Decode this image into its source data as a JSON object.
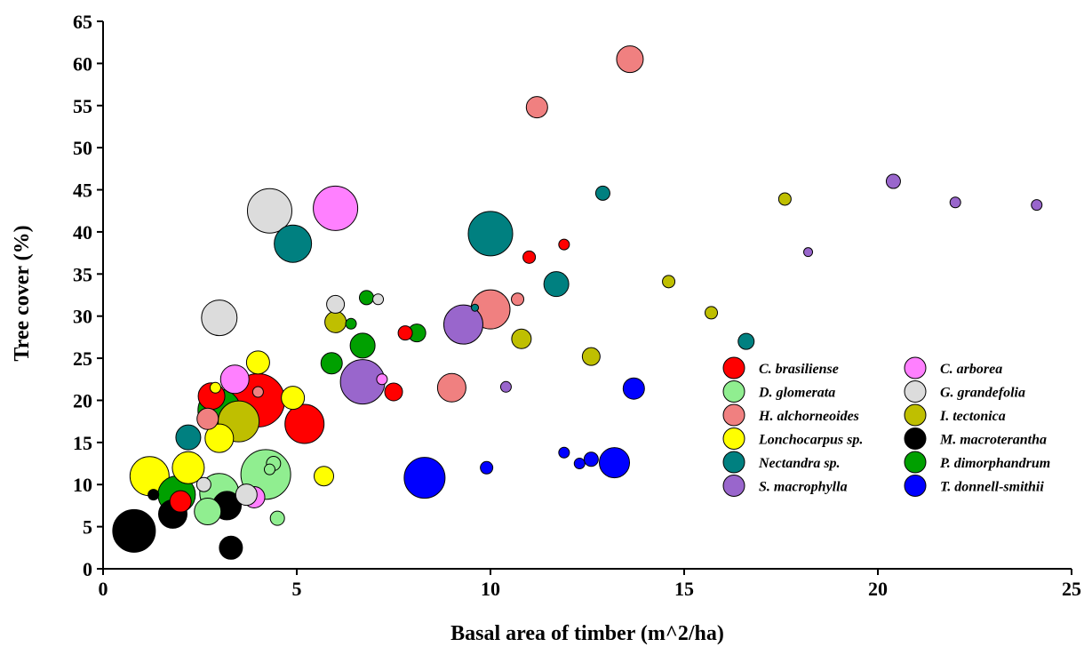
{
  "chart_data": {
    "type": "scatter",
    "subtype": "bubble",
    "title": "",
    "xlabel": "Basal area of timber (m^2/ha)",
    "ylabel": "Tree cover (%)",
    "xlim": [
      0,
      25
    ],
    "ylim": [
      0,
      65
    ],
    "xticks": [
      0,
      5,
      10,
      15,
      20,
      25
    ],
    "yticks": [
      0,
      5,
      10,
      15,
      20,
      25,
      30,
      35,
      40,
      45,
      50,
      55,
      60,
      65
    ],
    "grid": false,
    "legend_position": "bottom-right",
    "series": [
      {
        "name": "C. brasiliense",
        "color": "#ff0000",
        "points": [
          [
            4.0,
            20.0,
            3
          ],
          [
            5.2,
            17.2,
            2.2
          ],
          [
            2.8,
            20.5,
            1.5
          ],
          [
            7.5,
            21.0,
            1.0
          ],
          [
            7.8,
            28.0,
            0.8
          ],
          [
            11.0,
            37.0,
            0.7
          ],
          [
            11.9,
            38.5,
            0.6
          ],
          [
            2.0,
            8.0,
            1.2
          ]
        ]
      },
      {
        "name": "D. glomerata",
        "color": "#90ee90",
        "points": [
          [
            4.2,
            11.2,
            2.8
          ],
          [
            3.0,
            9.0,
            2.2
          ],
          [
            2.7,
            6.8,
            1.5
          ],
          [
            4.4,
            12.5,
            0.8
          ],
          [
            4.5,
            6.0,
            0.8
          ],
          [
            4.3,
            11.8,
            0.6
          ]
        ]
      },
      {
        "name": "H. alchorneoides",
        "color": "#f08080",
        "points": [
          [
            13.6,
            60.5,
            1.5
          ],
          [
            11.2,
            54.8,
            1.2
          ],
          [
            10.0,
            30.8,
            2.2
          ],
          [
            9.0,
            21.5,
            1.6
          ],
          [
            10.7,
            32.0,
            0.7
          ],
          [
            4.0,
            21.0,
            0.6
          ],
          [
            2.7,
            17.8,
            1.2
          ]
        ]
      },
      {
        "name": "Lonchocarpus sp.",
        "color": "#ffff00",
        "points": [
          [
            1.2,
            11.0,
            2.2
          ],
          [
            2.2,
            12.0,
            1.8
          ],
          [
            3.0,
            15.5,
            1.6
          ],
          [
            4.0,
            24.5,
            1.3
          ],
          [
            4.9,
            20.3,
            1.3
          ],
          [
            5.7,
            11.0,
            1.1
          ],
          [
            2.9,
            21.5,
            0.6
          ]
        ]
      },
      {
        "name": "Nectandra sp.",
        "color": "#008080",
        "points": [
          [
            10.0,
            39.8,
            2.5
          ],
          [
            4.9,
            38.6,
            2.1
          ],
          [
            11.7,
            33.8,
            1.4
          ],
          [
            2.2,
            15.6,
            1.4
          ],
          [
            12.9,
            44.6,
            0.8
          ],
          [
            16.6,
            27.0,
            0.9
          ],
          [
            9.6,
            31.0,
            0.4
          ]
        ]
      },
      {
        "name": "S. macrophylla",
        "color": "#9966cc",
        "points": [
          [
            6.7,
            22.2,
            2.5
          ],
          [
            9.3,
            29.0,
            2.2
          ],
          [
            20.4,
            46.0,
            0.8
          ],
          [
            22.0,
            43.5,
            0.6
          ],
          [
            24.1,
            43.2,
            0.6
          ],
          [
            18.2,
            37.6,
            0.5
          ],
          [
            10.4,
            21.6,
            0.6
          ]
        ]
      },
      {
        "name": "C. arborea",
        "color": "#ff80ff",
        "points": [
          [
            6.0,
            42.8,
            2.5
          ],
          [
            3.4,
            22.5,
            1.6
          ],
          [
            3.9,
            8.5,
            1.2
          ],
          [
            7.2,
            22.5,
            0.6
          ]
        ]
      },
      {
        "name": "G. grandefolia",
        "color": "#dcdcdc",
        "points": [
          [
            4.3,
            42.5,
            2.5
          ],
          [
            3.0,
            29.8,
            2.0
          ],
          [
            3.7,
            8.8,
            1.2
          ],
          [
            6.0,
            31.4,
            1.0
          ],
          [
            7.1,
            32.0,
            0.6
          ],
          [
            2.6,
            10.0,
            0.8
          ]
        ]
      },
      {
        "name": "I. tectonica",
        "color": "#bfbf00",
        "points": [
          [
            3.5,
            17.5,
            2.3
          ],
          [
            6.0,
            29.3,
            1.2
          ],
          [
            10.8,
            27.3,
            1.1
          ],
          [
            12.6,
            25.2,
            1.0
          ],
          [
            14.6,
            34.1,
            0.7
          ],
          [
            15.7,
            30.4,
            0.7
          ],
          [
            17.6,
            43.9,
            0.7
          ]
        ]
      },
      {
        "name": "M. macroterantha",
        "color": "#000000",
        "points": [
          [
            0.8,
            4.5,
            2.4
          ],
          [
            1.8,
            6.5,
            1.6
          ],
          [
            3.2,
            7.5,
            1.6
          ],
          [
            3.3,
            2.5,
            1.3
          ],
          [
            1.3,
            8.8,
            0.6
          ]
        ]
      },
      {
        "name": "P. dimorphandrum",
        "color": "#00a000",
        "points": [
          [
            3.0,
            18.8,
            2.4
          ],
          [
            1.9,
            8.8,
            2.1
          ],
          [
            6.7,
            26.5,
            1.4
          ],
          [
            5.9,
            24.4,
            1.2
          ],
          [
            8.1,
            28.0,
            1.0
          ],
          [
            6.8,
            32.2,
            0.8
          ],
          [
            6.4,
            29.1,
            0.6
          ]
        ]
      },
      {
        "name": "T. donnell-smithii",
        "color": "#0000ff",
        "points": [
          [
            8.3,
            10.8,
            2.3
          ],
          [
            13.2,
            12.6,
            1.7
          ],
          [
            13.7,
            21.4,
            1.2
          ],
          [
            12.6,
            13.0,
            0.8
          ],
          [
            12.3,
            12.5,
            0.6
          ],
          [
            11.9,
            13.8,
            0.6
          ],
          [
            9.9,
            12.0,
            0.7
          ]
        ]
      }
    ],
    "legend_order": [
      "C. brasiliense",
      "C. arborea",
      "D. glomerata",
      "G. grandefolia",
      "H. alchorneoides",
      "I. tectonica",
      "Lonchocarpus sp.",
      "M. macroterantha",
      "Nectandra sp.",
      "P. dimorphandrum",
      "S. macrophylla",
      "T. donnell-smithii"
    ]
  }
}
